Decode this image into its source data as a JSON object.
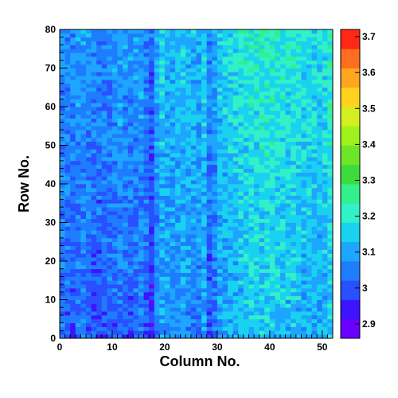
{
  "chart_data": {
    "type": "heatmap",
    "title": "",
    "xlabel": "Column No.",
    "ylabel": "Row No.",
    "xlim": [
      0,
      52
    ],
    "ylim": [
      0,
      80
    ],
    "x_ticks": [
      "0",
      "10",
      "20",
      "30",
      "40",
      "50"
    ],
    "y_ticks": [
      "0",
      "10",
      "20",
      "30",
      "40",
      "50",
      "60",
      "70",
      "80"
    ],
    "columns": 52,
    "rows": 80,
    "z_range": [
      2.86,
      3.72
    ],
    "colorbar": {
      "ticks": [
        "2.9",
        "3",
        "3.1",
        "3.2",
        "3.3",
        "3.4",
        "3.5",
        "3.6",
        "3.7"
      ],
      "colors": [
        "#6a00ff",
        "#3c14ff",
        "#2850ff",
        "#1e7dff",
        "#1ea5ff",
        "#19d2f0",
        "#32f0c8",
        "#32f08c",
        "#3cdc3c",
        "#6ee628",
        "#a0f01e",
        "#d2f01e",
        "#ffd21e",
        "#ffa51e",
        "#ff6e1e",
        "#ff2814"
      ]
    },
    "column_profile": [
      3.05,
      3.04,
      3.03,
      3.05,
      3.06,
      3.04,
      3.03,
      3.02,
      3.03,
      3.04,
      3.05,
      3.06,
      3.05,
      3.04,
      3.05,
      3.07,
      3.03,
      2.98,
      3.08,
      3.12,
      3.1,
      3.09,
      3.1,
      3.11,
      3.1,
      3.09,
      3.08,
      3.12,
      3.03,
      3.06,
      3.11,
      3.12,
      3.13,
      3.14,
      3.15,
      3.16,
      3.17,
      3.16,
      3.17,
      3.18,
      3.17,
      3.16,
      3.16,
      3.15,
      3.16,
      3.15,
      3.14,
      3.15,
      3.14,
      3.13,
      3.14,
      3.18
    ],
    "row_trend": {
      "bottom": -0.03,
      "top": 0.04
    }
  }
}
